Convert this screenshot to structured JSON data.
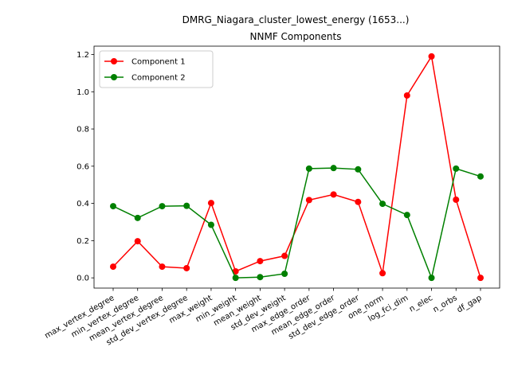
{
  "chart_data": {
    "type": "line",
    "title": "DMRG_Niagara_cluster_lowest_energy (1653...)",
    "subtitle": "NNMF Components",
    "xlabel": "",
    "ylabel": "",
    "categories": [
      "max_vertex_degree",
      "min_vertex_degree",
      "mean_vertex_degree",
      "std_dev_vertex_degree",
      "max_weight",
      "min_weight",
      "mean_weight",
      "std_dev_weight",
      "max_edge_order",
      "mean_edge_order",
      "std_dev_edge_order",
      "one_norm",
      "log_fci_dim",
      "n_elec",
      "n_orbs",
      "df_gap"
    ],
    "ylim": [
      -0.055,
      1.245
    ],
    "yticks": [
      "0.0",
      "0.2",
      "0.4",
      "0.6",
      "0.8",
      "1.0",
      "1.2"
    ],
    "grid": false,
    "legend_position": "top-left",
    "series": [
      {
        "name": "Component 1",
        "color": "#ff0000",
        "values": [
          0.06,
          0.197,
          0.06,
          0.052,
          0.402,
          0.035,
          0.09,
          0.118,
          0.418,
          0.448,
          0.408,
          0.025,
          0.98,
          1.19,
          0.42,
          0.0
        ]
      },
      {
        "name": "Component 2",
        "color": "#008000",
        "values": [
          0.385,
          0.322,
          0.385,
          0.387,
          0.285,
          0.0,
          0.004,
          0.022,
          0.587,
          0.59,
          0.583,
          0.398,
          0.338,
          0.0,
          0.587,
          0.545
        ]
      }
    ]
  }
}
